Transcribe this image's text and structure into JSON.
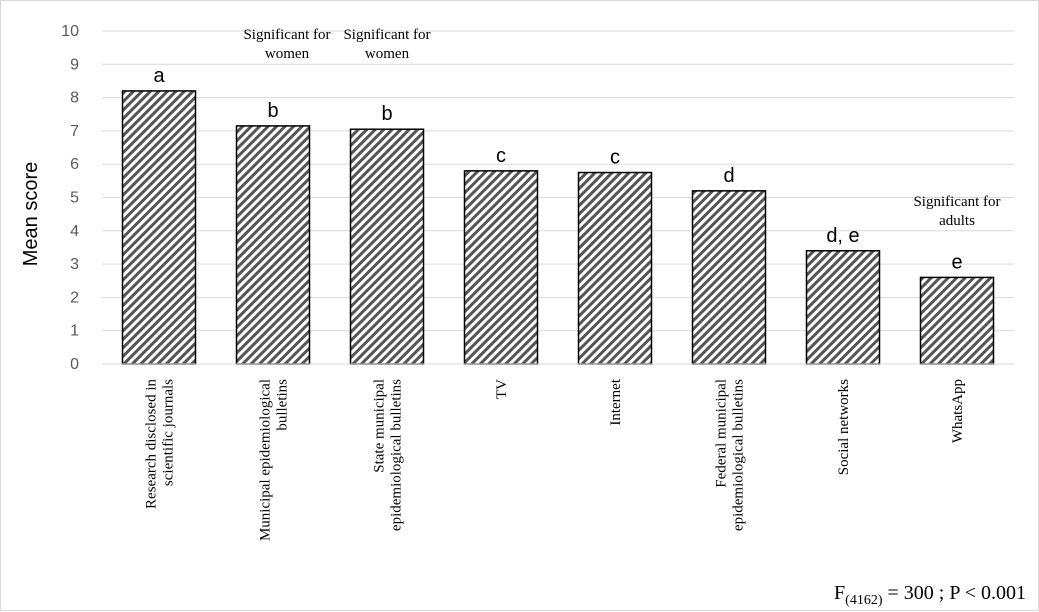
{
  "chart_data": {
    "type": "bar",
    "ylabel": "Mean score",
    "ylim": [
      0,
      10
    ],
    "yticks": [
      "0",
      "1",
      "2",
      "3",
      "4",
      "5",
      "6",
      "7",
      "8",
      "9",
      "10"
    ],
    "grid": true,
    "categories": [
      [
        "Research disclosed in",
        "scientific journals"
      ],
      [
        "Municipal epidemiological",
        "bulletins"
      ],
      [
        "State municipal",
        "epidemiological bulletins"
      ],
      [
        "TV"
      ],
      [
        "Internet"
      ],
      [
        "Federal municipal",
        "epidemiological bulletins"
      ],
      [
        "Social networks"
      ],
      [
        "WhatsApp"
      ]
    ],
    "values": [
      8.2,
      7.15,
      7.05,
      5.8,
      5.75,
      5.2,
      3.4,
      2.6
    ],
    "group_letters": [
      "a",
      "b",
      "b",
      "c",
      "c",
      "d",
      "d, e",
      "e"
    ],
    "annotations": [
      {
        "bar_index": 1,
        "lines": [
          "Significant for",
          "women"
        ]
      },
      {
        "bar_index": 2,
        "lines": [
          "Significant for",
          "women"
        ]
      },
      {
        "bar_index": 7,
        "lines": [
          "Significant for",
          "adults"
        ]
      }
    ],
    "stat_text": {
      "F": "F",
      "df": "(4162)",
      "rest": " = 300 ; P < 0.001"
    }
  }
}
